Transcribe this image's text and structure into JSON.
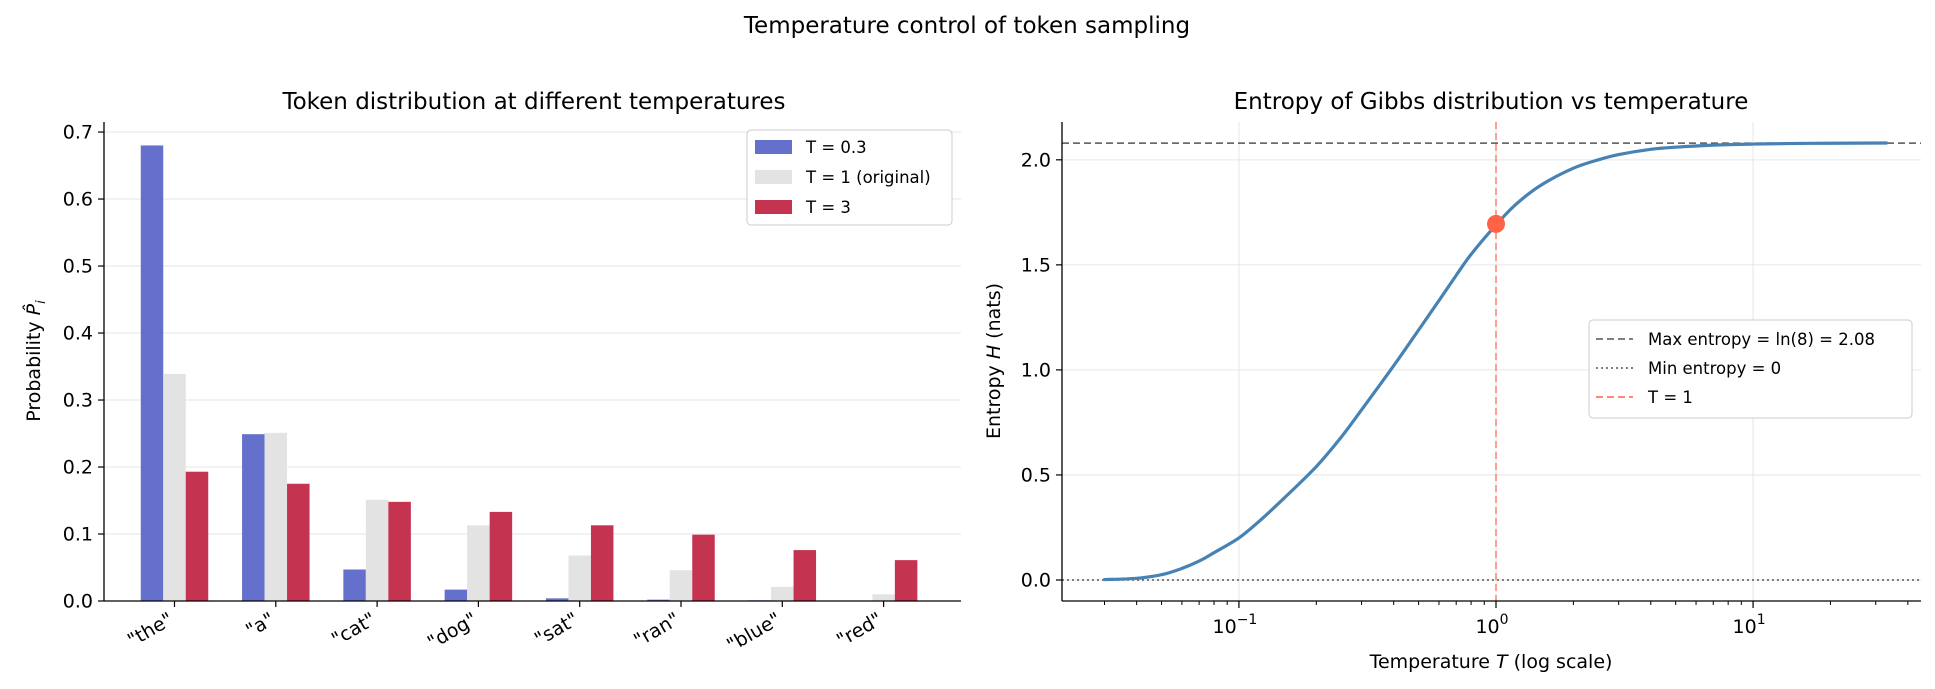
{
  "figure": {
    "suptitle": "Temperature control of token sampling"
  },
  "chart_data": [
    {
      "type": "bar",
      "title": "Token distribution at different temperatures",
      "xlabel": "",
      "ylabel": "Probability P̂i",
      "ylim": [
        0,
        0.715
      ],
      "yticks": [
        "0.0",
        "0.1",
        "0.2",
        "0.3",
        "0.4",
        "0.5",
        "0.6",
        "0.7"
      ],
      "categories": [
        "\"the\"",
        "\"a\"",
        "\"cat\"",
        "\"dog\"",
        "\"sat\"",
        "\"ran\"",
        "\"blue\"",
        "\"red\""
      ],
      "grid": "horizontal",
      "legend_position": "top-right",
      "series": [
        {
          "name": "T = 0.3",
          "color": "#6470cc",
          "values": [
            0.68,
            0.249,
            0.047,
            0.017,
            0.004,
            0.002,
            0.001,
            0.0
          ]
        },
        {
          "name": "T = 1 (original)",
          "color": "#e3e3e3",
          "values": [
            0.339,
            0.251,
            0.151,
            0.113,
            0.068,
            0.046,
            0.021,
            0.01
          ]
        },
        {
          "name": "T = 3",
          "color": "#c43350",
          "values": [
            0.193,
            0.175,
            0.148,
            0.133,
            0.113,
            0.099,
            0.076,
            0.061
          ]
        }
      ]
    },
    {
      "type": "line",
      "title": "Entropy of Gibbs distribution vs temperature",
      "xlabel": "Temperature T (log scale)",
      "ylabel": "Entropy H (nats)",
      "xscale": "log",
      "xlim": [
        0.0205,
        45
      ],
      "ylim": [
        -0.1,
        2.18
      ],
      "yticks": [
        "0.0",
        "0.5",
        "1.0",
        "1.5",
        "2.0"
      ],
      "xtick_exponents": [
        "−1",
        "0",
        "1"
      ],
      "grid": "both",
      "legend_position": "center-right",
      "series": [
        {
          "name": "",
          "color": "#4682b4",
          "x": [
            0.03,
            0.04,
            0.05,
            0.06,
            0.07,
            0.08,
            0.1,
            0.12,
            0.15,
            0.2,
            0.25,
            0.3,
            0.4,
            0.5,
            0.6,
            0.7,
            0.8,
            1.0,
            1.2,
            1.5,
            2.0,
            2.5,
            3.0,
            4.0,
            5.0,
            7.0,
            10,
            15,
            20,
            33
          ],
          "y": [
            0.002,
            0.008,
            0.025,
            0.055,
            0.09,
            0.13,
            0.2,
            0.28,
            0.39,
            0.54,
            0.68,
            0.81,
            1.02,
            1.19,
            1.33,
            1.45,
            1.55,
            1.69,
            1.79,
            1.88,
            1.96,
            2.0,
            2.025,
            2.05,
            2.06,
            2.07,
            2.075,
            2.078,
            2.079,
            2.08
          ]
        }
      ],
      "marker": {
        "x": 1.0,
        "y": 1.695,
        "color": "#ff6347"
      },
      "reference_lines": [
        {
          "name": "Max entropy = ln(8) = 2.08",
          "orientation": "horizontal",
          "value": 2.0794,
          "style": "dashed",
          "color": "#555555"
        },
        {
          "name": "Min entropy = 0",
          "orientation": "horizontal",
          "value": 0,
          "style": "dotted",
          "color": "#555555"
        },
        {
          "name": "T = 1",
          "orientation": "vertical",
          "value": 1,
          "style": "dashed",
          "color": "#ff6347"
        }
      ]
    }
  ]
}
